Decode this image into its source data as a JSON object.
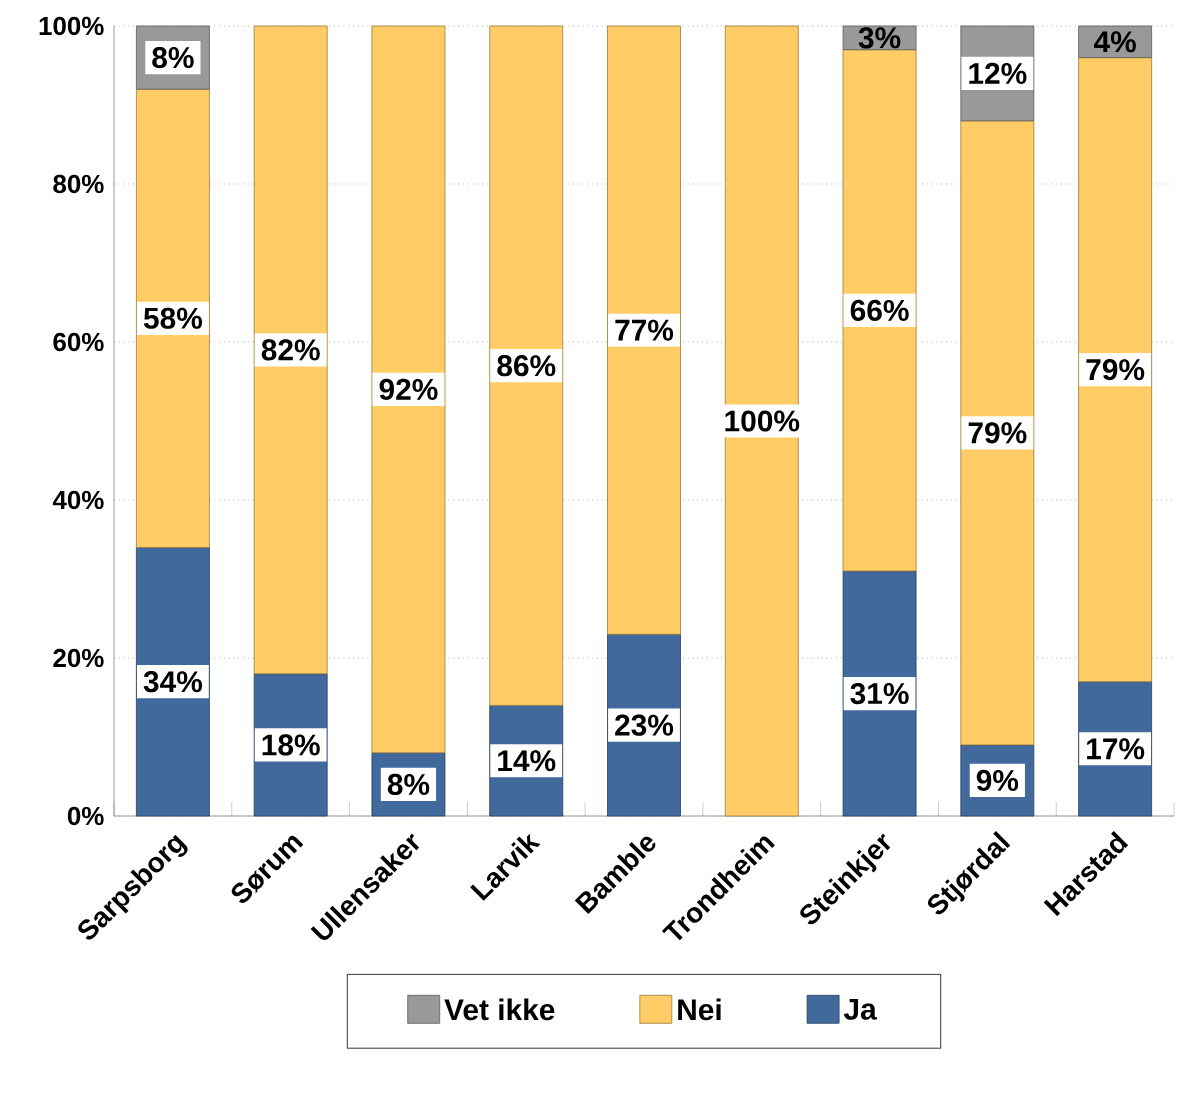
{
  "chart_data": {
    "type": "bar",
    "stacked": true,
    "categories": [
      "Sarpsborg",
      "Sørum",
      "Ullensaker",
      "Larvik",
      "Bamble",
      "Trondheim",
      "Steinkjer",
      "Stjørdal",
      "Harstad"
    ],
    "series": [
      {
        "name": "Ja",
        "color": "#41699c",
        "values": [
          34,
          18,
          8,
          14,
          23,
          null,
          31,
          9,
          17
        ],
        "value_labels": [
          "34%",
          "18%",
          "8%",
          "14%",
          "23%",
          null,
          "31%",
          "9%",
          "17%"
        ]
      },
      {
        "name": "Nei",
        "color": "#ffcc66",
        "values": [
          58,
          82,
          92,
          86,
          77,
          100,
          66,
          79,
          79
        ],
        "value_labels": [
          "58%",
          "82%",
          "92%",
          "86%",
          "77%",
          "100%",
          "66%",
          "79%",
          "79%"
        ]
      },
      {
        "name": "Vet ikke",
        "color": "#999999",
        "values": [
          8,
          null,
          null,
          null,
          null,
          null,
          3,
          12,
          4
        ],
        "value_labels": [
          "8%",
          null,
          null,
          null,
          null,
          null,
          "3%",
          "12%",
          "4%"
        ]
      }
    ],
    "ylim": [
      0,
      100
    ],
    "yticks": [
      {
        "value": 0,
        "label": "0%"
      },
      {
        "value": 20,
        "label": "20%"
      },
      {
        "value": 40,
        "label": "40%"
      },
      {
        "value": 60,
        "label": "60%"
      },
      {
        "value": 80,
        "label": "80%"
      },
      {
        "value": 100,
        "label": "100%"
      }
    ],
    "grid": "y",
    "legend": "bottom"
  }
}
